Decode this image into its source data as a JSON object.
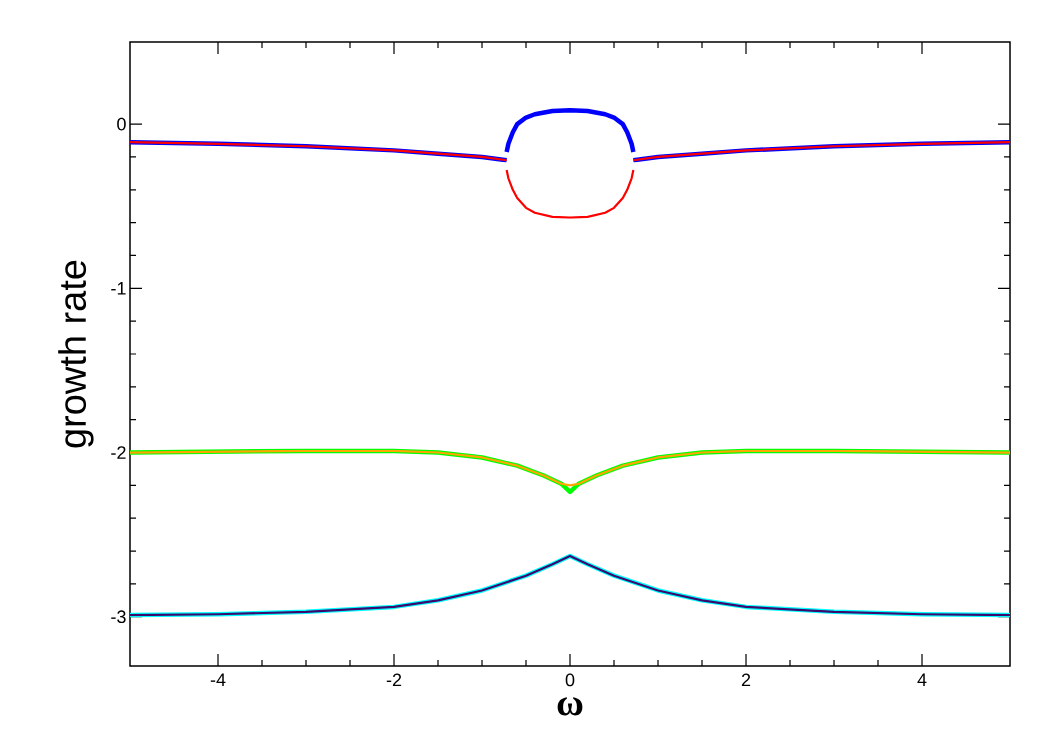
{
  "chart_data": {
    "type": "line",
    "xlabel": "ω",
    "ylabel": "growth rate",
    "xlim": [
      -5,
      5
    ],
    "ylim": [
      -3.3,
      0.5
    ],
    "xticks": [
      -4,
      -2,
      0,
      2,
      4
    ],
    "yticks": [
      -3,
      -2,
      -1,
      0
    ],
    "series": [
      {
        "color": "#0000ff",
        "x": [
          -5,
          -4,
          -3,
          -2,
          -1.5,
          -1,
          -0.72,
          null,
          -0.72,
          -0.7,
          -0.65,
          -0.6,
          -0.5,
          -0.4,
          -0.2,
          0,
          0.2,
          0.4,
          0.5,
          0.6,
          0.65,
          0.7,
          0.72,
          null,
          0.72,
          1,
          1.5,
          2,
          3,
          4,
          5
        ],
        "values": [
          -0.11,
          -0.12,
          -0.135,
          -0.16,
          -0.18,
          -0.2,
          -0.22,
          null,
          -0.17,
          -0.12,
          -0.05,
          0.0,
          0.04,
          0.06,
          0.08,
          0.085,
          0.08,
          0.06,
          0.04,
          0.0,
          -0.05,
          -0.12,
          -0.17,
          null,
          -0.22,
          -0.2,
          -0.18,
          -0.16,
          -0.135,
          -0.12,
          -0.11
        ]
      },
      {
        "color": "#ff0000",
        "x": [
          -5,
          -4,
          -3,
          -2,
          -1.5,
          -1,
          -0.72,
          null,
          -0.72,
          -0.7,
          -0.65,
          -0.6,
          -0.5,
          -0.4,
          -0.2,
          0,
          0.2,
          0.4,
          0.5,
          0.6,
          0.65,
          0.7,
          0.72,
          null,
          0.72,
          1,
          1.5,
          2,
          3,
          4,
          5
        ],
        "values": [
          -0.11,
          -0.12,
          -0.135,
          -0.16,
          -0.18,
          -0.2,
          -0.22,
          null,
          -0.28,
          -0.33,
          -0.4,
          -0.45,
          -0.51,
          -0.54,
          -0.565,
          -0.57,
          -0.565,
          -0.54,
          -0.51,
          -0.45,
          -0.4,
          -0.33,
          -0.28,
          null,
          -0.22,
          -0.2,
          -0.18,
          -0.16,
          -0.135,
          -0.12,
          -0.11
        ]
      },
      {
        "color": "#00ff00",
        "x": [
          -5,
          -3,
          -2,
          -1.5,
          -1,
          -0.6,
          -0.3,
          -0.1,
          0,
          0.1,
          0.3,
          0.6,
          1,
          1.5,
          2,
          3,
          5
        ],
        "values": [
          -2.0,
          -1.99,
          -1.99,
          -2.0,
          -2.03,
          -2.08,
          -2.14,
          -2.19,
          -2.24,
          -2.19,
          -2.14,
          -2.08,
          -2.03,
          -2.0,
          -1.99,
          -1.99,
          -2.0
        ]
      },
      {
        "color": "#ffa500",
        "x": [
          -5,
          -3,
          -2,
          -1.5,
          -1,
          -0.6,
          -0.3,
          -0.1,
          0,
          0.1,
          0.3,
          0.6,
          1,
          1.5,
          2,
          3,
          5
        ],
        "values": [
          -2.0,
          -1.99,
          -1.99,
          -2.0,
          -2.03,
          -2.08,
          -2.14,
          -2.19,
          -2.2,
          -2.19,
          -2.14,
          -2.08,
          -2.03,
          -2.0,
          -1.99,
          -1.99,
          -2.0
        ]
      },
      {
        "color": "#00ffff",
        "x": [
          -5,
          -4,
          -3,
          -2,
          -1.5,
          -1,
          -0.5,
          -0.2,
          0,
          0.2,
          0.5,
          1,
          1.5,
          2,
          3,
          4,
          5
        ],
        "values": [
          -2.99,
          -2.985,
          -2.97,
          -2.94,
          -2.9,
          -2.84,
          -2.75,
          -2.68,
          -2.63,
          -2.68,
          -2.75,
          -2.84,
          -2.9,
          -2.94,
          -2.97,
          -2.985,
          -2.99
        ]
      },
      {
        "color": "#3c0a6e",
        "x": [
          -5,
          -4,
          -3,
          -2,
          -1.5,
          -1,
          -0.5,
          -0.2,
          0,
          0.2,
          0.5,
          1,
          1.5,
          2,
          3,
          4,
          5
        ],
        "values": [
          -2.99,
          -2.985,
          -2.97,
          -2.94,
          -2.9,
          -2.84,
          -2.75,
          -2.68,
          -2.63,
          -2.68,
          -2.75,
          -2.84,
          -2.9,
          -2.94,
          -2.97,
          -2.985,
          -2.99
        ]
      }
    ]
  }
}
